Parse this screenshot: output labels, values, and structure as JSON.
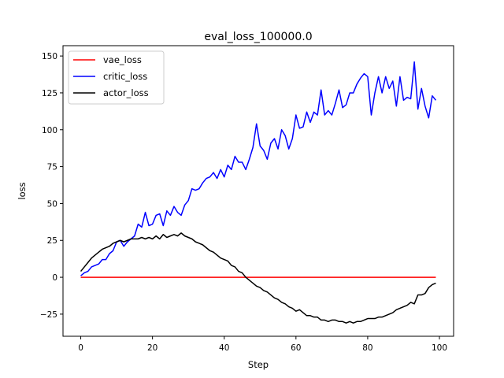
{
  "chart_data": {
    "type": "line",
    "title": "eval_loss_100000.0",
    "xlabel": "Step",
    "ylabel": "loss",
    "xlim": [
      -4.95,
      103.95
    ],
    "ylim": [
      -40,
      157
    ],
    "xticks": [
      0,
      20,
      40,
      60,
      80,
      100
    ],
    "yticks": [
      -25,
      0,
      25,
      50,
      75,
      100,
      125,
      150
    ],
    "grid": false,
    "legend_position": "upper-left",
    "series": [
      {
        "name": "vae_loss",
        "color": "#ff0000",
        "x_start": 0,
        "x_step": 1,
        "values": [
          0,
          0,
          0,
          0,
          0,
          0,
          0,
          0,
          0,
          0,
          0,
          0,
          0,
          0,
          0,
          0,
          0,
          0,
          0,
          0,
          0,
          0,
          0,
          0,
          0,
          0,
          0,
          0,
          0,
          0,
          0,
          0,
          0,
          0,
          0,
          0,
          0,
          0,
          0,
          0,
          0,
          0,
          0,
          0,
          0,
          0,
          0,
          0,
          0,
          0,
          0,
          0,
          0,
          0,
          0,
          0,
          0,
          0,
          0,
          0,
          0,
          0,
          0,
          0,
          0,
          0,
          0,
          0,
          0,
          0,
          0,
          0,
          0,
          0,
          0,
          0,
          0,
          0,
          0,
          0,
          0,
          0,
          0,
          0,
          0,
          0,
          0,
          0,
          0,
          0,
          0,
          0,
          0,
          0,
          0,
          0,
          0,
          0,
          0,
          0
        ]
      },
      {
        "name": "critic_loss",
        "color": "#0000ff",
        "x_start": 0,
        "x_step": 1,
        "values": [
          1,
          3,
          4,
          7,
          8,
          9,
          12,
          12,
          16,
          18,
          24,
          25,
          21,
          24,
          26,
          28,
          36,
          34,
          44,
          35,
          36,
          42,
          43,
          35,
          45,
          42,
          48,
          44,
          42,
          49,
          52,
          60,
          59,
          60,
          64,
          67,
          68,
          71,
          67,
          73,
          68,
          76,
          73,
          82,
          78,
          78,
          73,
          80,
          88,
          104,
          89,
          86,
          80,
          91,
          94,
          87,
          100,
          96,
          87,
          94,
          110,
          101,
          102,
          112,
          105,
          112,
          110,
          127,
          110,
          113,
          110,
          118,
          127,
          115,
          117,
          125,
          125,
          131,
          135,
          138,
          136,
          110,
          125,
          136,
          125,
          136,
          128,
          133,
          116,
          136,
          120,
          122,
          121,
          146,
          114,
          128,
          116,
          108,
          123,
          120
        ]
      },
      {
        "name": "actor_loss",
        "color": "#000000",
        "x_start": 0,
        "x_step": 1,
        "values": [
          4,
          7,
          10,
          13,
          15,
          17,
          19,
          20,
          21,
          23,
          24,
          25,
          24,
          25,
          26,
          26,
          26,
          27,
          26,
          27,
          26,
          28,
          26,
          29,
          27,
          28,
          29,
          28,
          30,
          28,
          27,
          26,
          24,
          23,
          22,
          20,
          18,
          17,
          15,
          13,
          12,
          11,
          8,
          7,
          4,
          3,
          0,
          -2,
          -4,
          -6,
          -7,
          -9,
          -10,
          -12,
          -14,
          -15,
          -17,
          -18,
          -20,
          -21,
          -23,
          -22,
          -24,
          -26,
          -26,
          -27,
          -27,
          -29,
          -29,
          -30,
          -29,
          -29,
          -30,
          -30,
          -31,
          -30,
          -31,
          -30,
          -30,
          -29,
          -28,
          -28,
          -28,
          -27,
          -27,
          -26,
          -25,
          -24,
          -22,
          -21,
          -20,
          -19,
          -17,
          -18,
          -12,
          -12,
          -11,
          -7,
          -5,
          -4
        ]
      }
    ]
  }
}
